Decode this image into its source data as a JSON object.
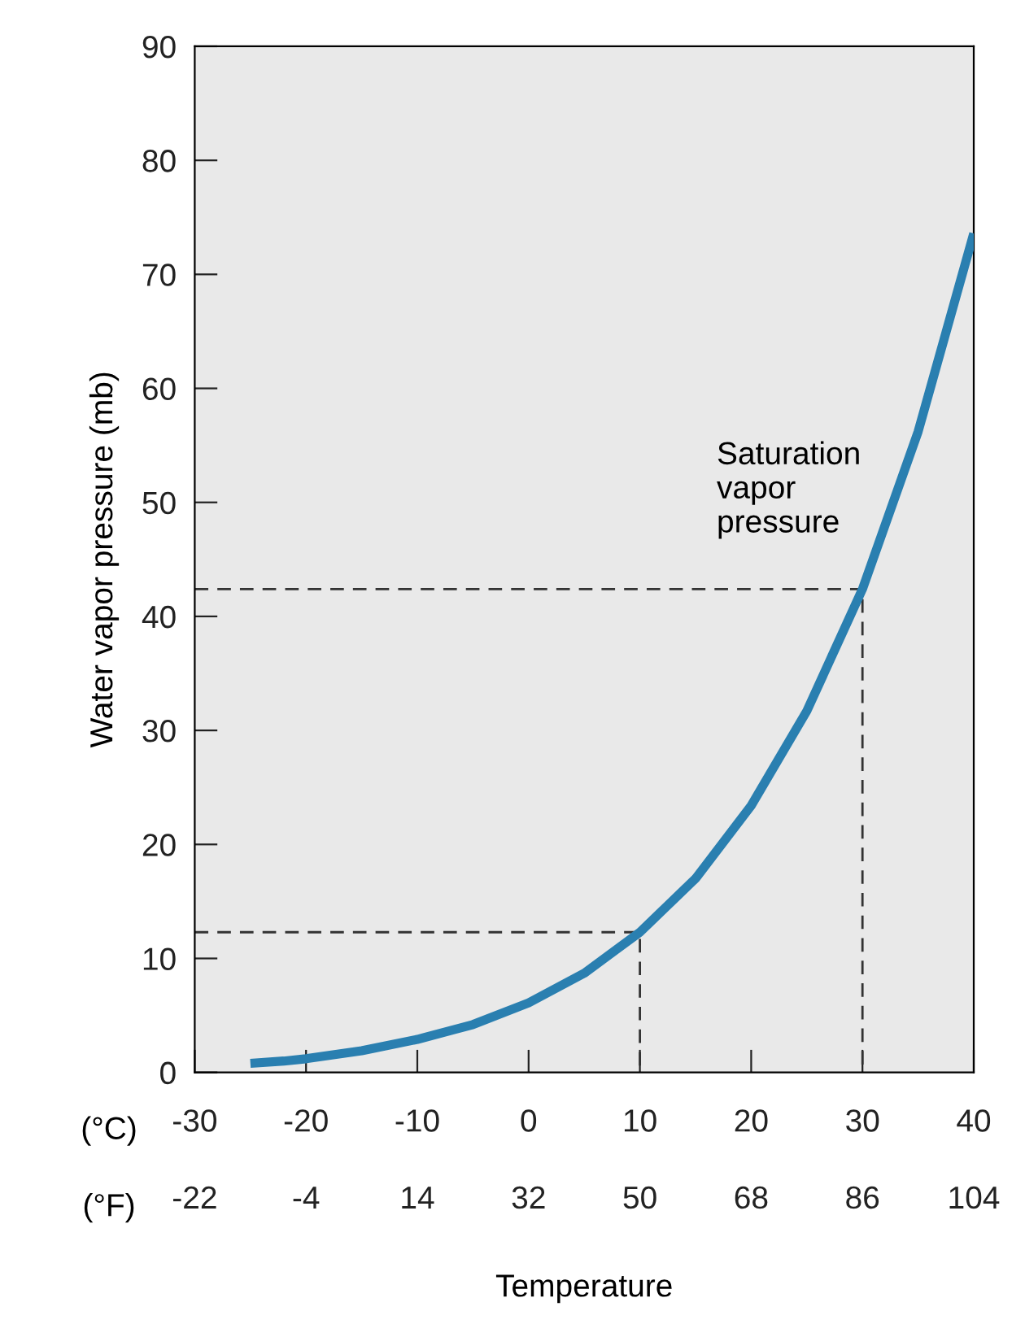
{
  "chart_data": {
    "type": "line",
    "xlabel": "Temperature",
    "ylabel": "Water vapor pressure (mb)",
    "x": [
      -25,
      -22,
      -20,
      -15,
      -10,
      -5,
      0,
      5,
      10,
      15,
      20,
      25,
      30,
      35,
      40
    ],
    "series": [
      {
        "color": "#2a7fb0",
        "values": [
          0.8,
          1.0,
          1.2,
          1.9,
          2.9,
          4.2,
          6.1,
          8.7,
          12.3,
          17.0,
          23.4,
          31.7,
          42.4,
          56.2,
          73.6
        ]
      },
      {
        "type": "line",
        "x": [
          -30,
          10,
          10
        ],
        "values": [
          12.3,
          12.3,
          0
        ],
        "color": "#333333",
        "line_style": "dashed"
      },
      {
        "type": "line",
        "x": [
          -30,
          30,
          30
        ],
        "values": [
          42.4,
          42.4,
          0
        ],
        "color": "#333333",
        "line_style": "dashed"
      }
    ],
    "xlim": [
      -30,
      40
    ],
    "xticks": [
      -30,
      -20,
      -10,
      0,
      10,
      20,
      30,
      40
    ],
    "x2lim": [
      -22,
      104
    ],
    "x2ticks": [
      -22,
      -4,
      14,
      32,
      50,
      68,
      86,
      104
    ],
    "ylim": [
      0,
      90
    ],
    "yticks": [
      0,
      10,
      20,
      30,
      40,
      50,
      60,
      70,
      80,
      90
    ],
    "annotations": [
      "Saturation\nvapor\npressure",
      "(°C)",
      "(°F)"
    ],
    "grid": false,
    "legend": false
  }
}
